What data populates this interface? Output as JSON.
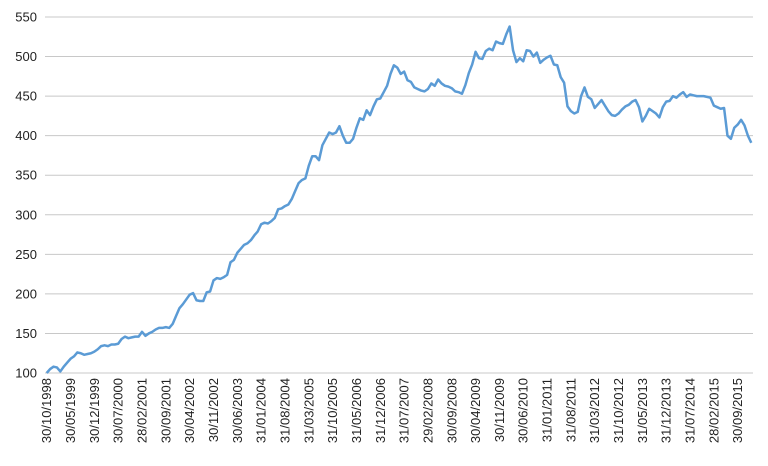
{
  "chart_data": {
    "type": "line",
    "categories": [
      "30/10/1998",
      null,
      null,
      null,
      null,
      null,
      null,
      "30/05/1999",
      null,
      null,
      null,
      null,
      null,
      null,
      "30/12/1999",
      null,
      null,
      null,
      null,
      null,
      null,
      "30/07/2000",
      null,
      null,
      null,
      null,
      null,
      null,
      "28/02/2001",
      null,
      null,
      null,
      null,
      null,
      null,
      "30/09/2001",
      null,
      null,
      null,
      null,
      null,
      null,
      "30/04/2002",
      null,
      null,
      null,
      null,
      null,
      null,
      "30/11/2002",
      null,
      null,
      null,
      null,
      null,
      null,
      "30/06/2003",
      null,
      null,
      null,
      null,
      null,
      null,
      "31/01/2004",
      null,
      null,
      null,
      null,
      null,
      null,
      "31/08/2004",
      null,
      null,
      null,
      null,
      null,
      null,
      "31/03/2005",
      null,
      null,
      null,
      null,
      null,
      null,
      "31/10/2005",
      null,
      null,
      null,
      null,
      null,
      null,
      "31/05/2006",
      null,
      null,
      null,
      null,
      null,
      null,
      "31/12/2006",
      null,
      null,
      null,
      null,
      null,
      null,
      "31/07/2007",
      null,
      null,
      null,
      null,
      null,
      null,
      "29/02/2008",
      null,
      null,
      null,
      null,
      null,
      null,
      "30/09/2008",
      null,
      null,
      null,
      null,
      null,
      null,
      "30/04/2009",
      null,
      null,
      null,
      null,
      null,
      null,
      "30/11/2009",
      null,
      null,
      null,
      null,
      null,
      null,
      "30/06/2010",
      null,
      null,
      null,
      null,
      null,
      null,
      "31/01/2011",
      null,
      null,
      null,
      null,
      null,
      null,
      "31/08/2011",
      null,
      null,
      null,
      null,
      null,
      null,
      "31/03/2012",
      null,
      null,
      null,
      null,
      null,
      null,
      "31/10/2012",
      null,
      null,
      null,
      null,
      null,
      null,
      "31/05/2013",
      null,
      null,
      null,
      null,
      null,
      null,
      "31/12/2013",
      null,
      null,
      null,
      null,
      null,
      null,
      "31/07/2014",
      null,
      null,
      null,
      null,
      null,
      null,
      "28/02/2015",
      null,
      null,
      null,
      null,
      null,
      null,
      "30/09/2015",
      null,
      null,
      null,
      null
    ],
    "series": [
      {
        "color": "#5b9bd5",
        "values": [
          100,
          105,
          108,
          107,
          102,
          108,
          113,
          118,
          121,
          126,
          125,
          123,
          124,
          125,
          127,
          130,
          134,
          135,
          134,
          136,
          136,
          137,
          143,
          146,
          144,
          145,
          146,
          146,
          152,
          147,
          150,
          152,
          155,
          157,
          157,
          158,
          157,
          162,
          172,
          182,
          187,
          193,
          199,
          201,
          192,
          191,
          191,
          202,
          203,
          217,
          220,
          219,
          221,
          224,
          240,
          243,
          252,
          257,
          262,
          264,
          268,
          274,
          279,
          288,
          290,
          289,
          292,
          296,
          307,
          308,
          311,
          313,
          320,
          330,
          340,
          344,
          346,
          362,
          374,
          374,
          369,
          388,
          396,
          404,
          402,
          404,
          412,
          400,
          391,
          391,
          396,
          410,
          422,
          420,
          432,
          426,
          437,
          446,
          447,
          455,
          463,
          478,
          489,
          486,
          478,
          481,
          470,
          468,
          461,
          459,
          457,
          456,
          459,
          466,
          463,
          471,
          466,
          463,
          462,
          460,
          456,
          455,
          453,
          464,
          479,
          490,
          506,
          498,
          497,
          507,
          510,
          508,
          519,
          517,
          516,
          528,
          538,
          508,
          493,
          498,
          494,
          508,
          507,
          500,
          505,
          492,
          496,
          499,
          501,
          490,
          489,
          474,
          467,
          437,
          431,
          428,
          430,
          450,
          461,
          449,
          446,
          435,
          440,
          445,
          438,
          431,
          426,
          425,
          428,
          433,
          437,
          439,
          443,
          445,
          436,
          418,
          425,
          434,
          431,
          428,
          423,
          436,
          443,
          444,
          450,
          448,
          452,
          455,
          449,
          452,
          451,
          450,
          450,
          450,
          449,
          448,
          438,
          436,
          434,
          435,
          400,
          396,
          410,
          414,
          420,
          413,
          400,
          391
        ]
      }
    ],
    "ylim": [
      100,
      550
    ],
    "yticks": [
      100,
      150,
      200,
      250,
      300,
      350,
      400,
      450,
      500,
      550
    ],
    "grid": true
  }
}
